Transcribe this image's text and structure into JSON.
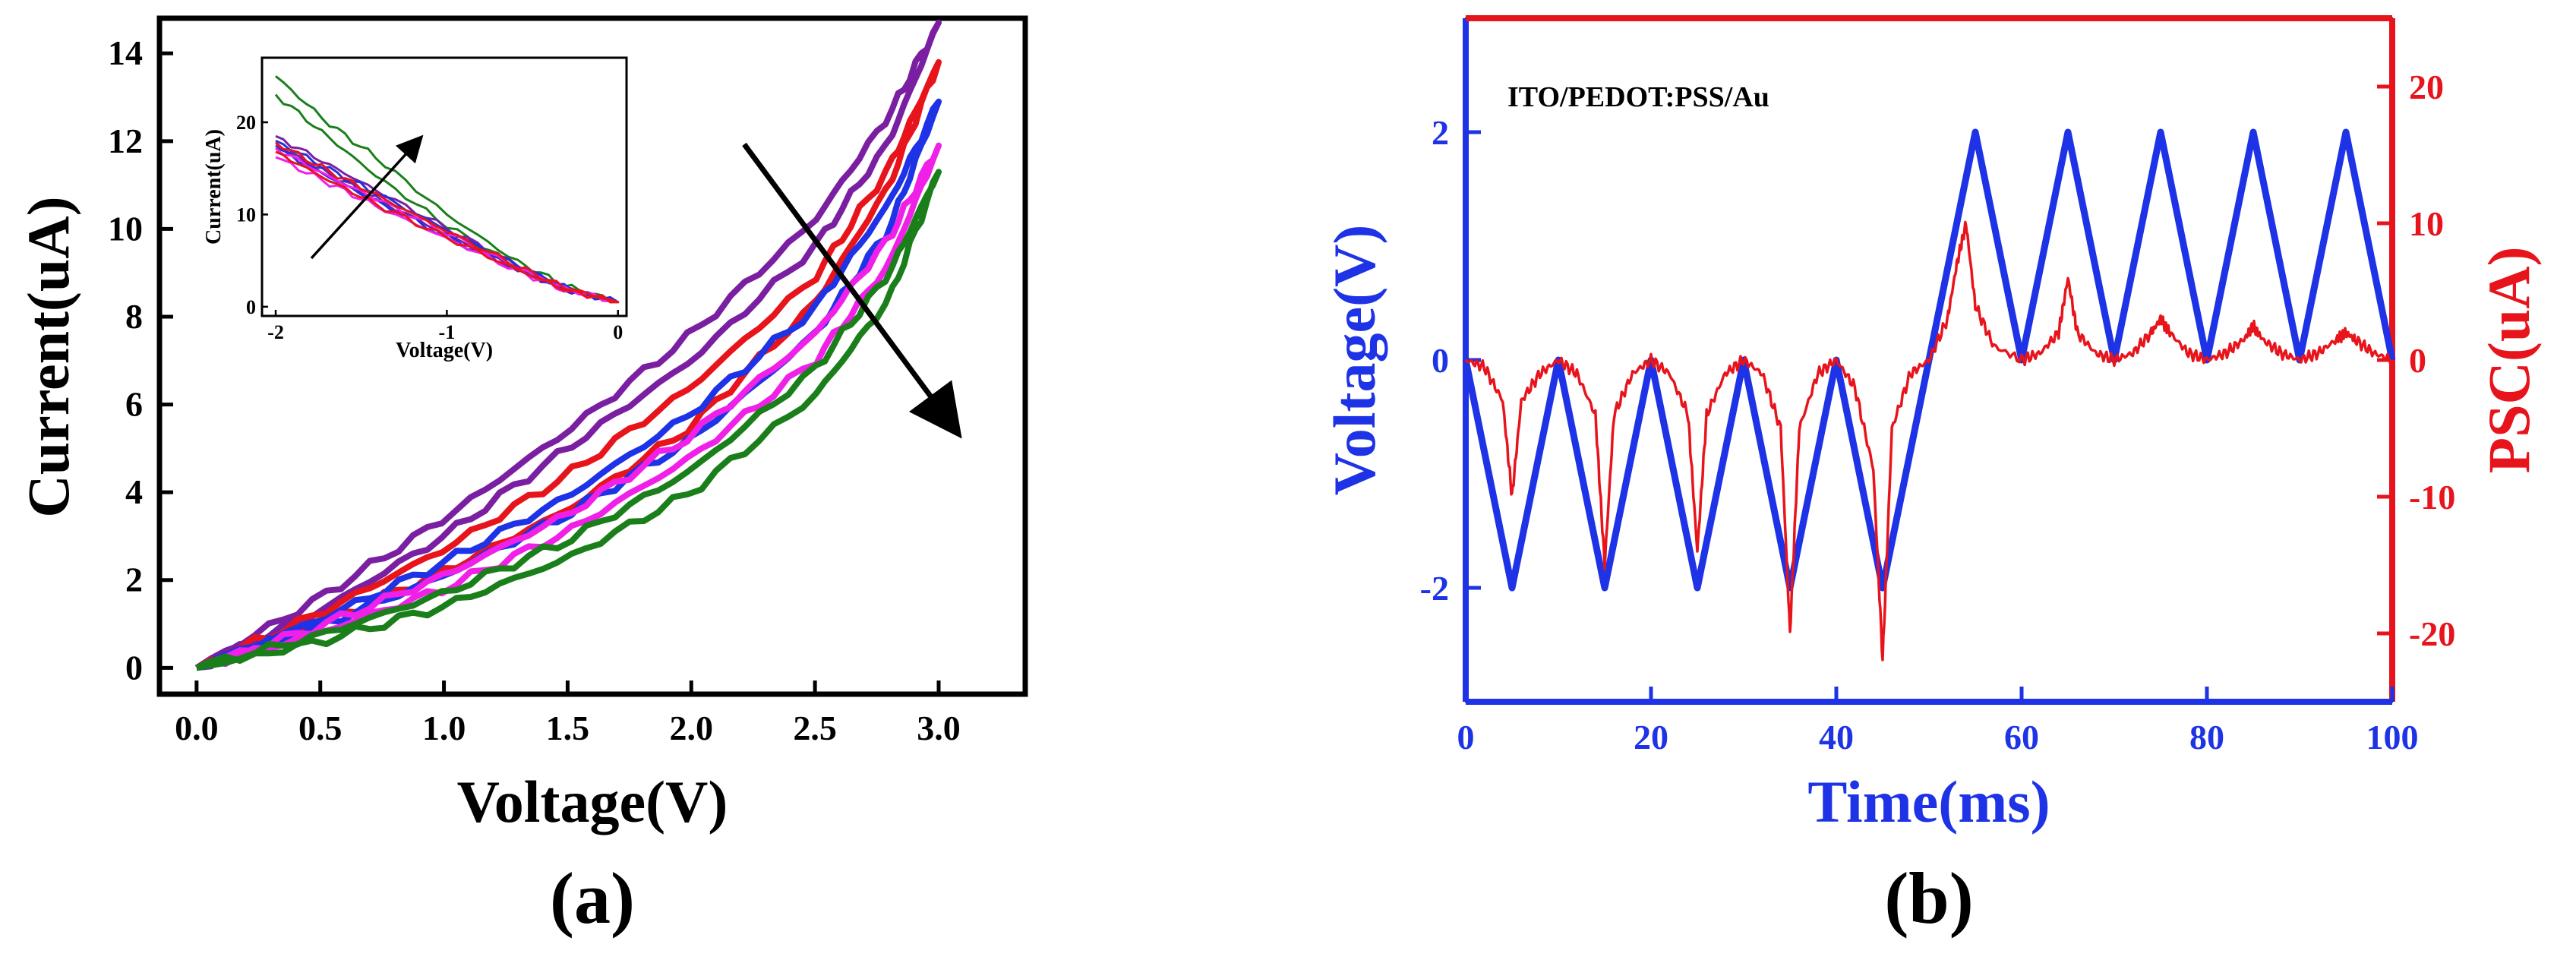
{
  "chart_data": [
    {
      "type": "line",
      "panel_label": "(a)",
      "xlabel": "Voltage(V)",
      "ylabel": "Current(uA)",
      "xlim": [
        -0.15,
        3.35
      ],
      "ylim": [
        -0.6,
        14.8
      ],
      "xticks": [
        "0.0",
        "0.5",
        "1.0",
        "1.5",
        "2.0",
        "2.5",
        "3.0"
      ],
      "yticks": [
        "0",
        "2",
        "4",
        "6",
        "8",
        "10",
        "12",
        "14"
      ],
      "legend": "none",
      "series": [
        {
          "name": "purple",
          "color": "#7B1FA2",
          "x": [
            0,
            0.5,
            1.0,
            1.5,
            2.0,
            2.5,
            2.8,
            3.0
          ],
          "up": [
            0,
            1.6,
            3.4,
            5.4,
            7.6,
            10.2,
            12.6,
            14.7
          ],
          "down": [
            0,
            1.3,
            3.0,
            5.0,
            7.0,
            9.6,
            12.0,
            14.7
          ]
        },
        {
          "name": "red",
          "color": "#E8141C",
          "x": [
            0,
            0.5,
            1.0,
            1.5,
            2.0,
            2.5,
            2.8,
            3.0
          ],
          "up": [
            0,
            1.25,
            2.7,
            4.4,
            6.4,
            8.9,
            11.4,
            13.8
          ],
          "down": [
            0,
            1.0,
            2.2,
            3.6,
            5.5,
            8.3,
            11.0,
            13.8
          ]
        },
        {
          "name": "blue",
          "color": "#1E32E6",
          "x": [
            0,
            0.5,
            1.0,
            1.5,
            2.0,
            2.5,
            2.8,
            3.0
          ],
          "up": [
            0,
            1.1,
            2.4,
            3.9,
            5.8,
            8.2,
            10.6,
            12.9
          ],
          "down": [
            0,
            0.95,
            2.1,
            3.5,
            5.2,
            7.6,
            10.0,
            12.9
          ]
        },
        {
          "name": "magenta",
          "color": "#F020E8",
          "x": [
            0,
            0.5,
            1.0,
            1.5,
            2.0,
            2.5,
            2.8,
            3.0
          ],
          "up": [
            0,
            0.95,
            2.1,
            3.5,
            5.3,
            7.6,
            9.8,
            11.9
          ],
          "down": [
            0,
            0.8,
            1.8,
            3.1,
            4.8,
            7.0,
            9.2,
            11.9
          ]
        },
        {
          "name": "green",
          "color": "#1A7F1A",
          "x": [
            0,
            0.5,
            1.0,
            1.5,
            2.0,
            2.5,
            2.8,
            3.0
          ],
          "up": [
            0,
            0.75,
            1.7,
            2.9,
            4.5,
            6.8,
            9.0,
            11.3
          ],
          "down": [
            0,
            0.6,
            1.4,
            2.5,
            4.0,
            6.2,
            8.4,
            11.3
          ]
        }
      ],
      "annotations": [
        "arrow from high to low current curves"
      ],
      "inset": {
        "type": "line",
        "xlabel": "Voltage(V)",
        "ylabel": "Current(uA)",
        "xlim": [
          -2,
          0
        ],
        "ylim": [
          -1,
          27
        ],
        "xticks": [
          "-2",
          "-1",
          "0"
        ],
        "yticks": [
          "0",
          "10",
          "20"
        ],
        "series": [
          {
            "name": "green",
            "color": "#1A7F1A",
            "x": [
              -2,
              -1.7,
              -1.4,
              -1.0,
              -0.6,
              -0.3,
              0
            ],
            "up": [
              25,
              20,
              16,
              10,
              5,
              2.2,
              0.5
            ],
            "down": [
              23,
              18.5,
              14,
              8.8,
              4.4,
              2.0,
              0.5
            ]
          },
          {
            "name": "purple",
            "color": "#7B1FA2",
            "x": [
              -2,
              -1.7,
              -1.4,
              -1.0,
              -0.6,
              -0.3,
              0
            ],
            "up": [
              18.5,
              15.5,
              12.5,
              8.5,
              4.6,
              2.0,
              0.5
            ],
            "down": [
              17.5,
              14.5,
              11.6,
              7.8,
              4.2,
              1.8,
              0.5
            ]
          },
          {
            "name": "blue",
            "color": "#1E32E6",
            "x": [
              -2,
              -1.7,
              -1.4,
              -1.0,
              -0.6,
              -0.3,
              0
            ],
            "up": [
              18,
              15,
              12.2,
              8.3,
              4.5,
              2.0,
              0.5
            ],
            "down": [
              17.2,
              14.2,
              11.3,
              7.6,
              4.1,
              1.8,
              0.5
            ]
          },
          {
            "name": "magenta",
            "color": "#F020E8",
            "x": [
              -2,
              -1.7,
              -1.4,
              -1.0,
              -0.6,
              -0.3,
              0
            ],
            "up": [
              17.2,
              14.2,
              11.6,
              8.0,
              4.4,
              1.9,
              0.5
            ],
            "down": [
              16.2,
              13.5,
              10.8,
              7.4,
              4.0,
              1.7,
              0.5
            ]
          },
          {
            "name": "red",
            "color": "#E8141C",
            "x": [
              -2,
              -1.7,
              -1.4,
              -1.0,
              -0.6,
              -0.3,
              0
            ],
            "up": [
              17.8,
              14.8,
              12.0,
              8.2,
              4.5,
              2.0,
              0.5
            ],
            "down": [
              16.8,
              13.8,
              11.0,
              7.5,
              4.1,
              1.8,
              0.5
            ]
          }
        ]
      }
    },
    {
      "type": "line",
      "panel_label": "(b)",
      "title": "ITO/PEDOT:PSS/Au",
      "xlabel": "Time(ms)",
      "ylabel_left": "Voltage(V)",
      "ylabel_right": "PSC(uA)",
      "xlim": [
        0,
        100
      ],
      "ylim_left": [
        -3,
        3
      ],
      "ylim_right": [
        -25,
        25
      ],
      "xticks": [
        "0",
        "20",
        "40",
        "60",
        "80",
        "100"
      ],
      "yticks_left": [
        "-2",
        "0",
        "2"
      ],
      "yticks_right": [
        "-20",
        "-10",
        "0",
        "10",
        "20"
      ],
      "left_color": "#1E32E6",
      "right_color": "#E8141C",
      "series": [
        {
          "name": "Voltage",
          "axis": "left",
          "color": "#1E32E6",
          "x": [
            0,
            5,
            10,
            15,
            20,
            25,
            30,
            35,
            40,
            45,
            50,
            55,
            60,
            65,
            70,
            75,
            80,
            85,
            90,
            95,
            100
          ],
          "y": [
            0,
            -2,
            0,
            -2,
            0,
            -2,
            0,
            -2,
            0,
            -2,
            0,
            2,
            0,
            2,
            0,
            2,
            0,
            2,
            0,
            2,
            0
          ]
        },
        {
          "name": "PSC",
          "axis": "right",
          "color": "#E8141C",
          "x": [
            0,
            2,
            4,
            5,
            6,
            8,
            10,
            12,
            14,
            15,
            16,
            18,
            20,
            22,
            24,
            25,
            26,
            28,
            30,
            32,
            34,
            35,
            36,
            38,
            40,
            42,
            44,
            45,
            46,
            48,
            50,
            52,
            53,
            54,
            55,
            57,
            60,
            62,
            64,
            65,
            66,
            68,
            70,
            72,
            74,
            75,
            76,
            78,
            80,
            82,
            84,
            85,
            86,
            88,
            90,
            92,
            94,
            95,
            96,
            98,
            100
          ],
          "y": [
            0,
            -0.5,
            -3,
            -10,
            -3,
            -1,
            0,
            -1,
            -4,
            -15,
            -4,
            -1,
            0,
            -1,
            -4,
            -14,
            -4,
            -1,
            0,
            -1,
            -5,
            -20,
            -5,
            -1,
            0,
            -2,
            -8,
            -22,
            -5,
            -1,
            0,
            3,
            7,
            10,
            4,
            1,
            0,
            0.5,
            2,
            6,
            2,
            0.5,
            0,
            0.5,
            2,
            3,
            2,
            0.5,
            0,
            0.5,
            1.5,
            2.5,
            1.5,
            0.5,
            0,
            0.5,
            1.5,
            2,
            1.5,
            0.5,
            0
          ]
        }
      ]
    }
  ]
}
